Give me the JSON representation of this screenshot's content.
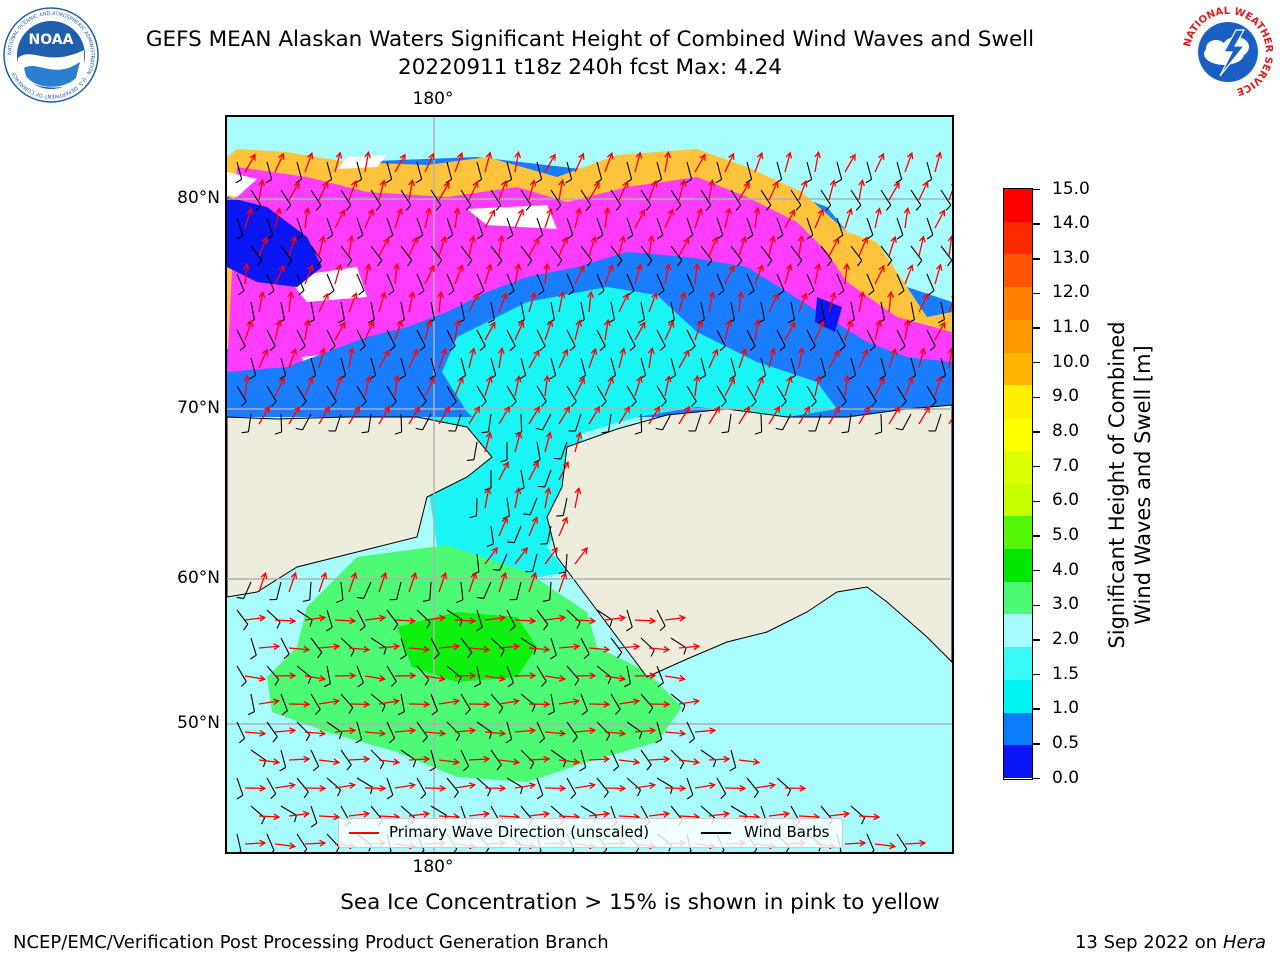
{
  "header": {
    "title_line1": "GEFS MEAN Alaskan Waters Significant Height of Combined Wind Waves and Swell",
    "title_line2": "20220911 t18z 240h fcst   Max: 4.24"
  },
  "logos": {
    "left": {
      "text": "NOAA",
      "ring_text": "NATIONAL OCEANIC AND ATMOSPHERIC ADMINISTRATION · U.S. DEPARTMENT OF COMMERCE",
      "color": "#1f5fae"
    },
    "right": {
      "ring_text": "NATIONAL WEATHER SERVICE",
      "color": "#e01b1b",
      "inner_color": "#1a5fc4"
    }
  },
  "map": {
    "lon_label_top": "180°",
    "lon_label_bottom": "180°",
    "lat_labels": [
      "80°N",
      "70°N",
      "60°N",
      "50°N"
    ],
    "colors": {
      "land": "#eeeddd",
      "arctic_ocean": "#1a7cff",
      "deep_blue": "#0b16f5",
      "cyan": "#19f4f4",
      "light_cyan": "#a9fcfc",
      "green_3_4": "#4dfa74",
      "green_4_5": "#0ef00e",
      "sea_ice_pink": "#ff3cff",
      "sea_ice_orange": "#ffc43c",
      "wave_arrow": "#ff0000",
      "wind_barb": "#000000",
      "gridline": "#b0b0b0"
    }
  },
  "legend": {
    "wave_direction": "Primary Wave Direction (unscaled)",
    "wind_barbs": "Wind Barbs"
  },
  "colorbar": {
    "ticks": [
      "15.0",
      "14.0",
      "13.0",
      "12.0",
      "11.0",
      "10.0",
      "9.0",
      "8.0",
      "7.0",
      "6.0",
      "5.0",
      "4.0",
      "3.0",
      "2.0",
      "1.5",
      "1.0",
      "0.5",
      "0.0"
    ],
    "colors_top_to_bottom": [
      "#ff0000",
      "#ff2a00",
      "#ff5500",
      "#ff7f00",
      "#ff9900",
      "#ffb400",
      "#ffee00",
      "#ffff00",
      "#dcff00",
      "#c8ff00",
      "#55f50a",
      "#00e600",
      "#4dfa74",
      "#a6fcfc",
      "#39f8f8",
      "#00f2f2",
      "#0a7dff",
      "#0a14f5"
    ],
    "label_line1": "Significant Height of Combined",
    "label_line2": "Wind Waves and Swell [m]"
  },
  "caption": "Sea Ice Concentration > 15% is shown in pink to yellow",
  "footer": {
    "left": "NCEP/EMC/Verification Post Processing Product Generation Branch",
    "right_date": "13 Sep 2022 on",
    "right_host": "Hera"
  }
}
